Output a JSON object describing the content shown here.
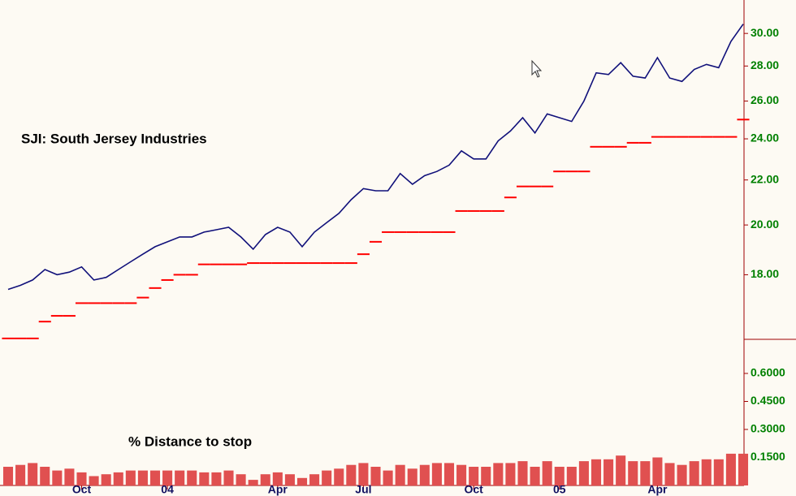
{
  "chart_data": [
    {
      "type": "line",
      "title": "SJI: South Jersey Industries",
      "log_scale": true,
      "categories": [
        null,
        null,
        null,
        null,
        null,
        null,
        "Oct",
        null,
        null,
        null,
        null,
        null,
        null,
        "04",
        null,
        null,
        null,
        null,
        null,
        null,
        null,
        null,
        "Apr",
        null,
        null,
        null,
        null,
        null,
        null,
        "Jul",
        null,
        null,
        null,
        null,
        null,
        null,
        null,
        null,
        "Oct",
        null,
        null,
        null,
        null,
        null,
        null,
        "05",
        null,
        null,
        null,
        null,
        null,
        null,
        null,
        "Apr",
        null,
        null,
        null,
        null,
        null,
        null,
        null
      ],
      "series": [
        {
          "color": "#10107a",
          "values": [
            17.45,
            17.6,
            17.8,
            18.2,
            18.0,
            18.1,
            18.3,
            17.8,
            17.9,
            18.2,
            18.5,
            18.8,
            19.1,
            19.3,
            19.5,
            19.5,
            19.7,
            19.8,
            19.9,
            19.5,
            19.0,
            19.6,
            19.9,
            19.7,
            19.1,
            19.7,
            20.1,
            20.5,
            21.1,
            21.6,
            21.5,
            21.5,
            22.3,
            21.8,
            22.2,
            22.4,
            22.7,
            23.4,
            23.0,
            23.0,
            23.9,
            24.4,
            25.1,
            24.3,
            25.3,
            25.1,
            24.9,
            26.0,
            27.6,
            27.5,
            28.2,
            27.4,
            27.3,
            28.5,
            27.3,
            27.1,
            27.8,
            28.1,
            27.9,
            29.5,
            30.6
          ]
        },
        {
          "color": "#ff0000",
          "style": "step",
          "values": [
            15.73,
            15.73,
            15.73,
            16.3,
            16.5,
            16.5,
            16.95,
            16.95,
            16.95,
            16.95,
            16.95,
            17.15,
            17.5,
            17.8,
            18.0,
            18.0,
            18.4,
            18.4,
            18.4,
            18.4,
            18.45,
            18.45,
            18.45,
            18.45,
            18.45,
            18.45,
            18.45,
            18.45,
            18.45,
            18.8,
            19.3,
            19.7,
            19.7,
            19.7,
            19.7,
            19.7,
            19.7,
            20.6,
            20.6,
            20.6,
            20.6,
            21.2,
            21.7,
            21.7,
            21.7,
            22.4,
            22.4,
            22.4,
            23.6,
            23.6,
            23.6,
            23.8,
            23.8,
            24.1,
            24.1,
            24.1,
            24.1,
            24.1,
            24.1,
            24.1,
            25.0
          ]
        }
      ],
      "ylim": [
        15.7,
        32.2
      ],
      "yticks": [
        {
          "value": 18,
          "label": "18.00"
        },
        {
          "value": 20,
          "label": "20.00"
        },
        {
          "value": 22,
          "label": "22.00"
        },
        {
          "value": 24,
          "label": "24.00"
        },
        {
          "value": 26,
          "label": "26.00"
        },
        {
          "value": 28,
          "label": "28.00"
        },
        {
          "value": 30,
          "label": "30.00"
        }
      ]
    },
    {
      "type": "bar",
      "title": "% Distance to stop",
      "color": "#e05050",
      "values": [
        0.1,
        0.11,
        0.12,
        0.1,
        0.08,
        0.09,
        0.07,
        0.05,
        0.06,
        0.07,
        0.08,
        0.08,
        0.08,
        0.08,
        0.08,
        0.08,
        0.07,
        0.07,
        0.08,
        0.06,
        0.03,
        0.06,
        0.07,
        0.06,
        0.04,
        0.06,
        0.08,
        0.09,
        0.11,
        0.12,
        0.1,
        0.08,
        0.11,
        0.09,
        0.11,
        0.12,
        0.12,
        0.11,
        0.1,
        0.1,
        0.12,
        0.12,
        0.13,
        0.1,
        0.13,
        0.1,
        0.1,
        0.13,
        0.14,
        0.14,
        0.16,
        0.13,
        0.13,
        0.15,
        0.12,
        0.11,
        0.13,
        0.14,
        0.14,
        0.17,
        0.17
      ],
      "ylim": [
        0,
        0.774
      ],
      "yticks": [
        {
          "value": 0.15,
          "label": "0.1500"
        },
        {
          "value": 0.3,
          "label": "0.3000"
        },
        {
          "value": 0.45,
          "label": "0.4500"
        },
        {
          "value": 0.6,
          "label": "0.6000"
        }
      ]
    }
  ]
}
